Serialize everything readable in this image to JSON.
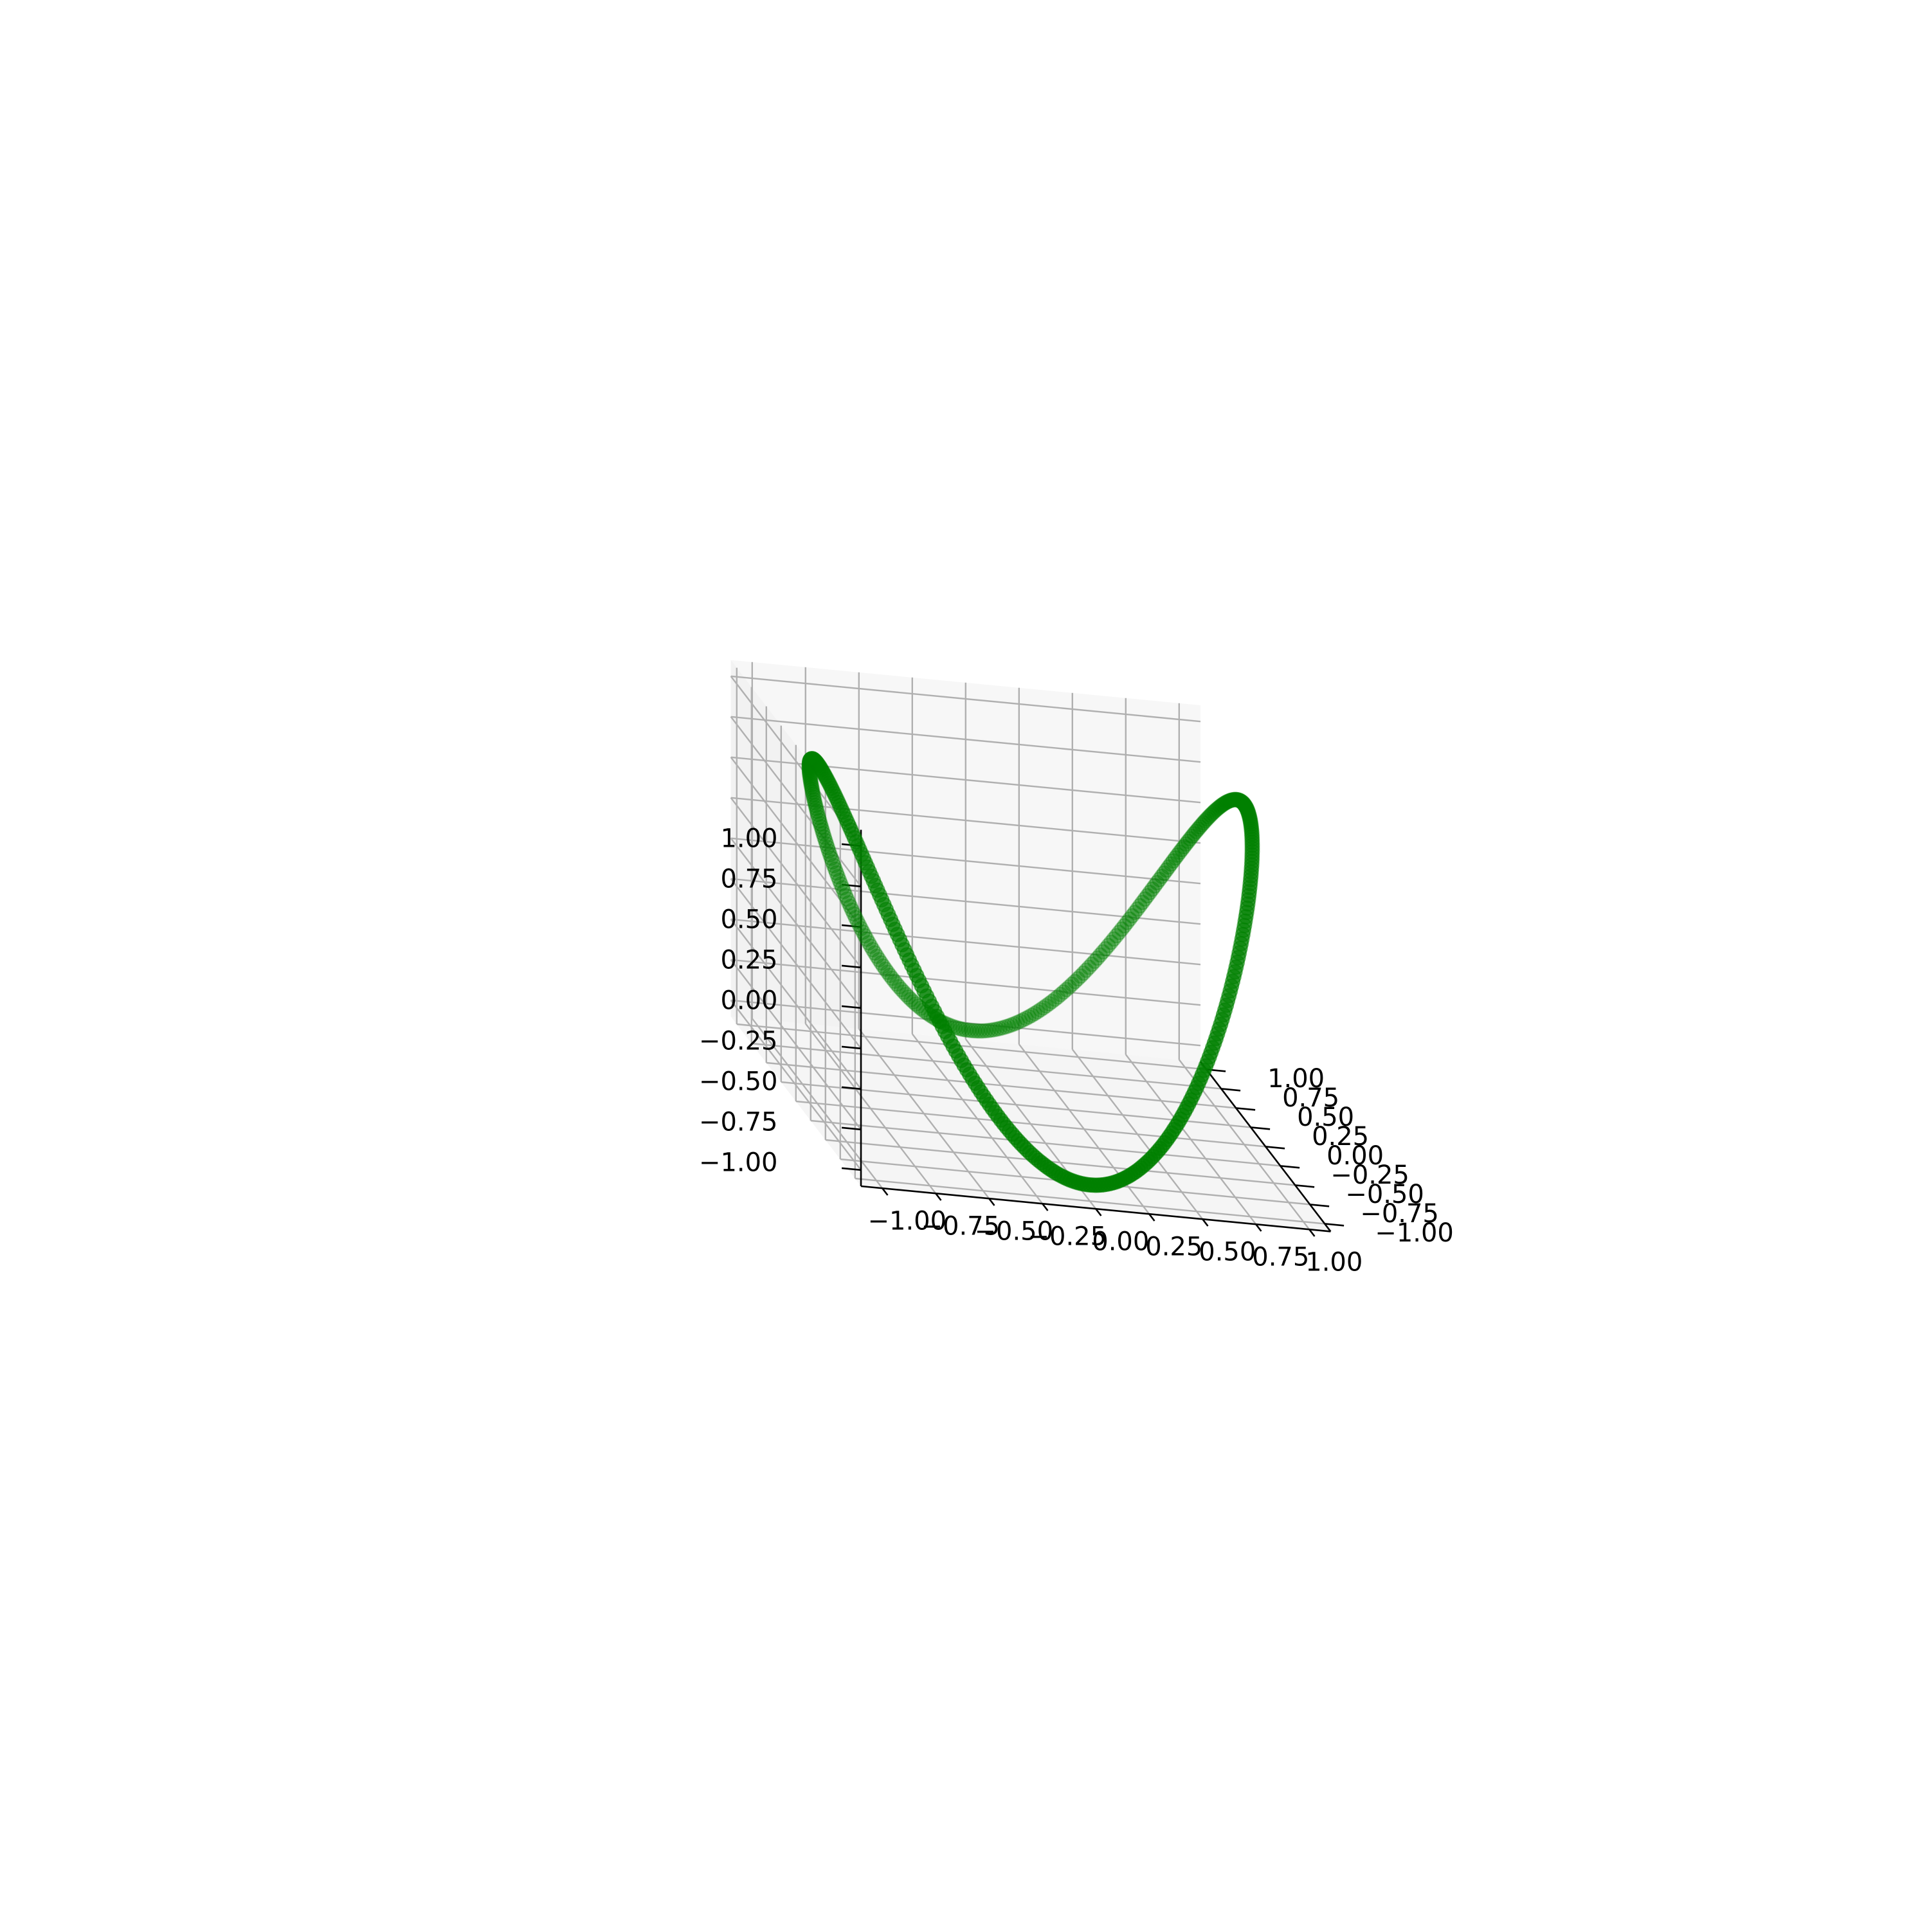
{
  "chart_data": {
    "type": "scatter",
    "projection": "3d",
    "title": "",
    "xlabel": "",
    "ylabel": "",
    "zlabel": "",
    "xlim": [
      -1.1,
      1.1
    ],
    "ylim": [
      -1.1,
      1.1
    ],
    "zlim": [
      -1.1,
      1.1
    ],
    "grid": true,
    "view": {
      "elevation_deg": 15,
      "azimuth_deg": -75
    },
    "x_ticks": [
      "−1.00",
      "−0.75",
      "−0.50",
      "−0.25",
      "0.00",
      "0.25",
      "0.50",
      "0.75",
      "1.00"
    ],
    "y_ticks": [
      "−1.00",
      "−0.75",
      "−0.50",
      "−0.25",
      "0.00",
      "0.25",
      "0.50",
      "0.75",
      "1.00"
    ],
    "z_ticks": [
      "−1.00",
      "−0.75",
      "−0.50",
      "−0.25",
      "0.00",
      "0.25",
      "0.50",
      "0.75",
      "1.00"
    ],
    "tick_values": [
      -1,
      -0.75,
      -0.5,
      -0.25,
      0,
      0.25,
      0.5,
      0.75,
      1
    ],
    "series": [
      {
        "curve": "parametric: x = cos(t), y = sin(t), z = cos(2t)",
        "t_range": [
          0,
          6.2832
        ],
        "point_count": 480,
        "color": "#008000",
        "alpha": 0.3
      }
    ]
  }
}
